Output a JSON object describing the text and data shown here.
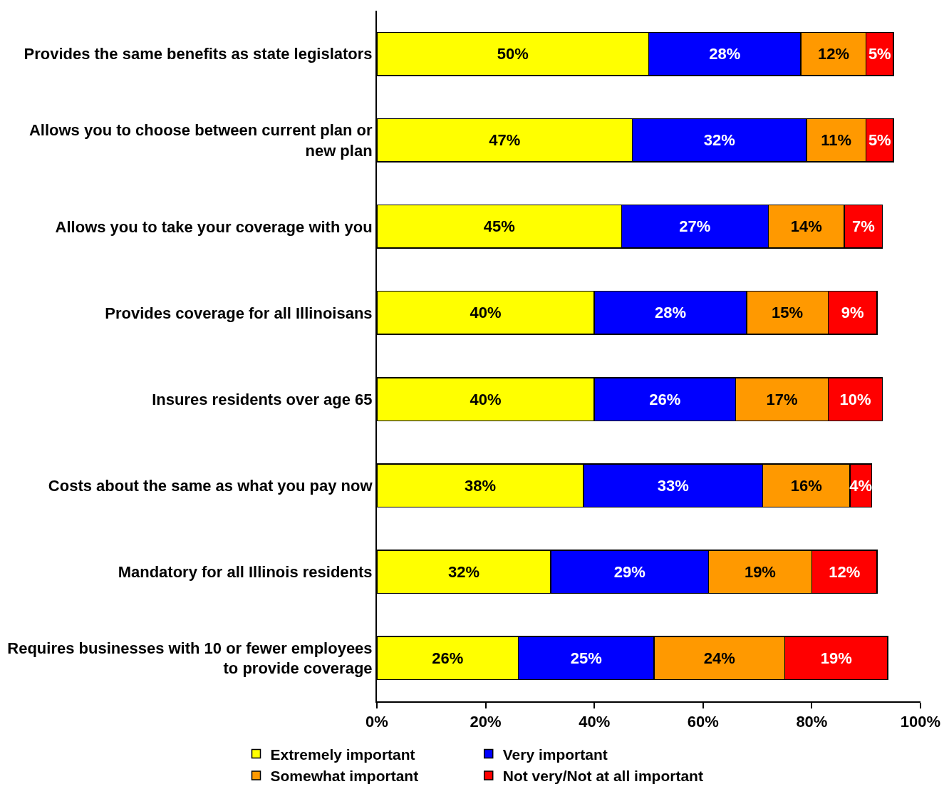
{
  "chart_data": {
    "type": "bar",
    "orientation": "horizontal",
    "stacked": true,
    "categories": [
      "Provides the same benefits as state legislators",
      "Allows you to choose between current plan or new plan",
      "Allows you to take your coverage with you",
      "Provides coverage for all Illinoisans",
      "Insures residents over age 65",
      "Costs about the same as what you pay now",
      "Mandatory for all Illinois residents",
      "Requires businesses with 10 or fewer employees to provide coverage"
    ],
    "series": [
      {
        "name": "Extremely important",
        "color": "#ffff00",
        "values": [
          50,
          47,
          45,
          40,
          40,
          38,
          32,
          26
        ],
        "value_labels": [
          "50%",
          "47%",
          "45%",
          "40%",
          "40%",
          "38%",
          "32%",
          "26%"
        ]
      },
      {
        "name": "Very important",
        "color": "#0000ff",
        "values": [
          28,
          32,
          27,
          28,
          26,
          33,
          29,
          25
        ],
        "value_labels": [
          "28%",
          "32%",
          "27%",
          "28%",
          "26%",
          "33%",
          "29%",
          "25%"
        ]
      },
      {
        "name": "Somewhat important",
        "color": "#ff9900",
        "values": [
          12,
          11,
          14,
          15,
          17,
          16,
          19,
          24
        ],
        "value_labels": [
          "12%",
          "11%",
          "14%",
          "15%",
          "17%",
          "16%",
          "19%",
          "24%"
        ]
      },
      {
        "name": "Not very/Not at all important",
        "color": "#ff0000",
        "values": [
          5,
          5,
          7,
          9,
          10,
          4,
          12,
          19
        ],
        "value_labels": [
          "5%",
          "5%",
          "7%",
          "9%",
          "10%",
          "4%",
          "12%",
          "19%"
        ]
      }
    ],
    "xlim": [
      0,
      100
    ],
    "xticks": [
      {
        "value": 0,
        "label": "0%"
      },
      {
        "value": 20,
        "label": "20%"
      },
      {
        "value": 40,
        "label": "40%"
      },
      {
        "value": 60,
        "label": "60%"
      },
      {
        "value": 80,
        "label": "80%"
      },
      {
        "value": 100,
        "label": "100%"
      }
    ],
    "legend": "bottom"
  }
}
